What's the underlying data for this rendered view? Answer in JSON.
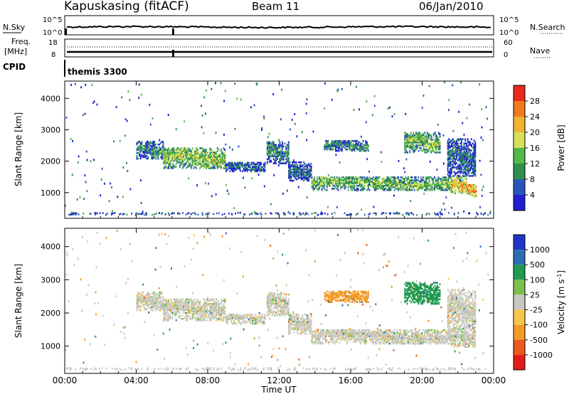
{
  "header": {
    "station": "Kapuskasing (fitACF)",
    "beam": "Beam 11",
    "date": "06/Jan/2010"
  },
  "noise_panel": {
    "label_left": "N.Sky",
    "label_right": "N.Search",
    "tick_top_left": "10^5",
    "tick_bottom_left": "10^0",
    "tick_top_right": "10^5",
    "tick_bottom_right": "10^0"
  },
  "freq_panel": {
    "label_left_1": "Freq.",
    "label_left_2": "[MHz]",
    "label_right": "Nave",
    "freq_ticks": [
      "18",
      "8"
    ],
    "nave_ticks": [
      "60",
      "0"
    ]
  },
  "cpid_panel": {
    "label": "CPID",
    "value": "themis 3300"
  },
  "colors": {
    "power": [
      "#1f1fd0",
      "#2a55b8",
      "#2f8f4f",
      "#55b84a",
      "#d7e05a",
      "#f0b431",
      "#f07a1c",
      "#e8281a"
    ],
    "velocity": [
      "#2035c8",
      "#2b6fb5",
      "#1f9a50",
      "#7cc04c",
      "#c8c8c0",
      "#f6c84a",
      "#f39a25",
      "#ea5a1a",
      "#e51b1b"
    ]
  },
  "chart_data": [
    {
      "type": "heatmap",
      "title": "",
      "xlabel": "Time UT",
      "ylabel": "Slant Range [km]",
      "x_ticks": [
        "00:00",
        "04:00",
        "08:00",
        "12:00",
        "16:00",
        "20:00",
        "00:00"
      ],
      "y_ticks": [
        "1000",
        "2000",
        "3000",
        "4000"
      ],
      "xlim": [
        0,
        24
      ],
      "ylim": [
        180,
        4550
      ],
      "colorbar": {
        "label": "Power [dB]",
        "ticks": [
          "4",
          "8",
          "12",
          "16",
          "20",
          "24",
          "28"
        ],
        "range": [
          0,
          30
        ]
      },
      "bands": [
        {
          "t": [
            4.0,
            5.5
          ],
          "r": [
            2050,
            2600
          ],
          "value": 10
        },
        {
          "t": [
            5.5,
            9.0
          ],
          "r": [
            1750,
            2400
          ],
          "value": 16
        },
        {
          "t": [
            9.0,
            11.2
          ],
          "r": [
            1650,
            1950
          ],
          "value": 7
        },
        {
          "t": [
            11.3,
            12.5
          ],
          "r": [
            1900,
            2600
          ],
          "value": 9
        },
        {
          "t": [
            12.5,
            13.8
          ],
          "r": [
            1350,
            1950
          ],
          "value": 8
        },
        {
          "t": [
            13.8,
            21.6
          ],
          "r": [
            1050,
            1500
          ],
          "value": 14
        },
        {
          "t": [
            21.6,
            22.5
          ],
          "r": [
            950,
            1500
          ],
          "value": 20
        },
        {
          "t": [
            22.5,
            23.0
          ],
          "r": [
            850,
            1250
          ],
          "value": 24
        },
        {
          "t": [
            21.4,
            23.0
          ],
          "r": [
            1500,
            2700
          ],
          "value": 8
        },
        {
          "t": [
            14.5,
            17.0
          ],
          "r": [
            2300,
            2650
          ],
          "value": 10
        },
        {
          "t": [
            19.0,
            21.0
          ],
          "r": [
            2250,
            2900
          ],
          "value": 14
        }
      ]
    },
    {
      "type": "heatmap",
      "title": "",
      "xlabel": "Time UT",
      "ylabel": "Slant Range [km]",
      "x_ticks": [
        "00:00",
        "04:00",
        "08:00",
        "12:00",
        "16:00",
        "20:00",
        "00:00"
      ],
      "y_ticks": [
        "1000",
        "2000",
        "3000",
        "4000"
      ],
      "xlim": [
        0,
        24
      ],
      "ylim": [
        180,
        4550
      ],
      "colorbar": {
        "label": "Velocity [m s^-1]",
        "ticks": [
          "1000",
          "500",
          "100",
          "25",
          "-25",
          "-100",
          "-500",
          "-1000"
        ],
        "range": [
          -1000,
          1000
        ]
      },
      "bands": [
        {
          "t": [
            4.0,
            5.5
          ],
          "r": [
            2050,
            2600
          ],
          "value": 0
        },
        {
          "t": [
            5.5,
            9.0
          ],
          "r": [
            1750,
            2400
          ],
          "value": 0
        },
        {
          "t": [
            9.0,
            11.2
          ],
          "r": [
            1650,
            1950
          ],
          "value": 0
        },
        {
          "t": [
            11.3,
            12.5
          ],
          "r": [
            1900,
            2600
          ],
          "value": 0
        },
        {
          "t": [
            12.5,
            13.8
          ],
          "r": [
            1350,
            1950
          ],
          "value": 0
        },
        {
          "t": [
            13.8,
            21.6
          ],
          "r": [
            1050,
            1500
          ],
          "value": 0
        },
        {
          "t": [
            21.6,
            23.0
          ],
          "r": [
            950,
            1500
          ],
          "value": 0
        },
        {
          "t": [
            21.4,
            23.0
          ],
          "r": [
            1500,
            2700
          ],
          "value": 0
        },
        {
          "t": [
            14.5,
            17.0
          ],
          "r": [
            2300,
            2650
          ],
          "value": -200
        },
        {
          "t": [
            19.0,
            21.0
          ],
          "r": [
            2250,
            2900
          ],
          "value": 300
        }
      ]
    }
  ]
}
